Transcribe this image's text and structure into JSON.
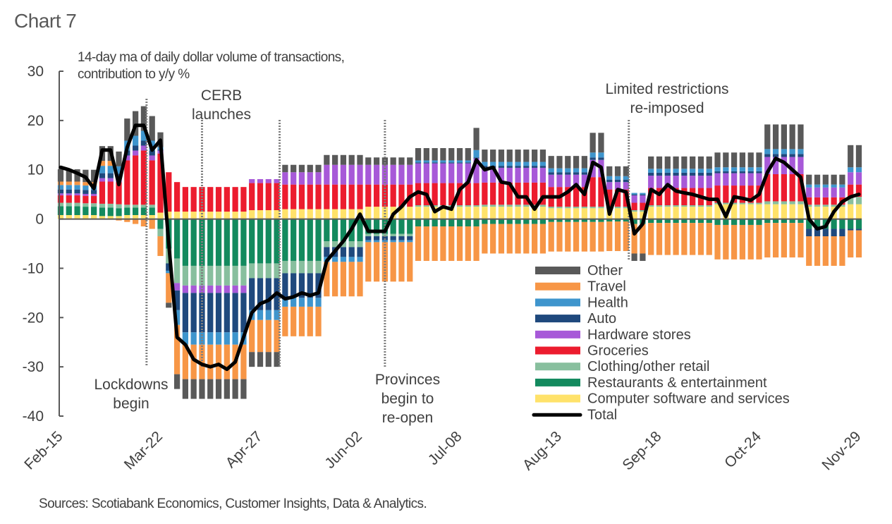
{
  "title": "Chart 7",
  "subtitle_line1": "14-day ma of daily dollar volume of transactions,",
  "subtitle_line2": "contribution to y/y %",
  "source": "Sources: Scotiabank Economics, Customer Insights, Data & Analytics.",
  "chart_data": {
    "type": "bar",
    "subtype": "stacked bar with line overlay",
    "title": "Chart 7",
    "subtitle": "14-day ma of daily dollar volume of transactions, contribution to y/y %",
    "xlabel": "",
    "ylabel": "contribution to y/y %",
    "ylim": [
      -40,
      30
    ],
    "yticks": [
      30,
      20,
      10,
      0,
      -10,
      -20,
      -30,
      -40
    ],
    "xticks": [
      "Feb-15",
      "Mar-22",
      "Apr-27",
      "Jun-02",
      "Jul-08",
      "Aug-13",
      "Sep-18",
      "Oct-24",
      "Nov-29"
    ],
    "xtick_day_offsets": [
      0,
      36,
      72,
      108,
      144,
      180,
      216,
      252,
      288
    ],
    "x_start": "Feb-15",
    "x_step_days": 3,
    "legend_position": "bottom-right",
    "grid": false,
    "annotations": [
      {
        "label_lines": [
          "Lockdowns",
          "begin"
        ],
        "day": 31
      },
      {
        "label_lines": [
          "CERB",
          "launches"
        ],
        "day": 51
      },
      {
        "label_lines": [],
        "day": 79
      },
      {
        "label_lines": [
          "Provinces",
          "begin to",
          "re-open"
        ],
        "day": 117
      },
      {
        "label_lines": [
          "Limited restrictions",
          "re-imposed"
        ],
        "day": 205
      }
    ],
    "series": [
      {
        "name": "Computer software and services",
        "color": "#FFE26A",
        "values": [
          0.8,
          0.8,
          0.8,
          0.8,
          0.8,
          0.6,
          0.6,
          0.6,
          0.8,
          0.8,
          0.8,
          0.8,
          1.3,
          1.5,
          1.5,
          1.5,
          1.5,
          1.5,
          1.5,
          1.5,
          1.5,
          1.5,
          1.5,
          1.8,
          1.8,
          1.8,
          1.8,
          2,
          2,
          2,
          2,
          2,
          2,
          2,
          2,
          2,
          2,
          2.5,
          2.5,
          2.5,
          2.5,
          2.5,
          2.5,
          2.5,
          2.5,
          2.5,
          2.5,
          2.5,
          2.5,
          2.5,
          2.5,
          2.5,
          2.5,
          2.5,
          2.5,
          2.5,
          2.5,
          2.5,
          2.5,
          2.2,
          2.2,
          2.2,
          2.2,
          2.2,
          2.2,
          2.2,
          2.2,
          2.2,
          2.2,
          1.5,
          1.5,
          2.5,
          2.5,
          2.5,
          2.5,
          2.5,
          2.5,
          2.5,
          2.5,
          3,
          3,
          3,
          3,
          3,
          3,
          3,
          3,
          3,
          3,
          3,
          2.5,
          2.5,
          2.5,
          2.5,
          2.5,
          3,
          3
        ]
      },
      {
        "name": "Restaurants & entertainment",
        "color": "#138A5E",
        "values": [
          1.8,
          1.8,
          1.8,
          1.7,
          1.7,
          1.7,
          1.7,
          1.6,
          1.5,
          1.5,
          1.5,
          1.5,
          -2,
          -6,
          -8,
          -9.5,
          -9.5,
          -9.5,
          -9.5,
          -9.5,
          -9.5,
          -9.5,
          -9.5,
          -9,
          -9,
          -9,
          -9,
          -8.5,
          -8.5,
          -8.5,
          -8.5,
          -8.5,
          -4.5,
          -4.5,
          -4.5,
          -4.5,
          -4.5,
          -3,
          -3,
          -3,
          -3,
          -3,
          -3,
          -1.5,
          -1.5,
          -1.5,
          -1.5,
          -1.5,
          -1.5,
          -1.5,
          -1.5,
          -1,
          -1,
          -1,
          -1,
          -1,
          -1,
          -1,
          -1,
          -0.6,
          -0.6,
          -0.6,
          -0.6,
          -0.6,
          -0.6,
          -0.6,
          -0.5,
          -0.5,
          -0.5,
          -1,
          -1,
          -0.8,
          -0.8,
          -0.8,
          -0.8,
          -0.8,
          -0.8,
          -0.8,
          -0.8,
          -1.2,
          -1.2,
          -1.2,
          -1.2,
          -1.2,
          -1.2,
          -0.8,
          -0.8,
          -0.8,
          -0.8,
          -0.8,
          -2,
          -2,
          -2,
          -2,
          -2,
          -2,
          -2
        ]
      },
      {
        "name": "Clothing/other retail",
        "color": "#88BF9E",
        "values": [
          0.7,
          0.7,
          0.7,
          0.7,
          0.7,
          0.8,
          0.8,
          0.8,
          0.6,
          0.6,
          0.6,
          0.6,
          -1.5,
          -3,
          -5,
          -4,
          -4,
          -4,
          -4,
          -4,
          -4,
          -4,
          -4,
          -3,
          -3,
          -3,
          -3,
          -2.5,
          -2.5,
          -2.5,
          -2.5,
          -2.5,
          -1.2,
          -1.2,
          -1.2,
          -1.2,
          -1.2,
          -0.5,
          -0.5,
          -0.5,
          -0.5,
          -0.5,
          -0.5,
          0.3,
          0.3,
          0.3,
          0.3,
          0.3,
          0.3,
          0.3,
          0.3,
          0.4,
          0.4,
          0.4,
          0.4,
          0.4,
          0.4,
          0.4,
          0.4,
          0.3,
          0.3,
          0.3,
          0.3,
          0.3,
          0.3,
          0.3,
          0.3,
          0.3,
          0.3,
          0.3,
          0.3,
          0.3,
          0.3,
          0.3,
          0.3,
          0.3,
          0.3,
          0.3,
          0.3,
          0.3,
          0.3,
          0.3,
          0.3,
          0.3,
          0.3,
          0.6,
          0.6,
          0.6,
          0.6,
          0.6,
          0.4,
          0.4,
          0.4,
          0.4,
          0.4,
          1.5,
          1.5
        ]
      },
      {
        "name": "Groceries",
        "color": "#EC1C2E",
        "values": [
          1.5,
          1.5,
          1.5,
          1.5,
          1.5,
          4.5,
          4.5,
          4.5,
          9,
          10,
          11,
          9,
          12,
          8,
          6,
          5,
          5,
          5,
          5,
          5,
          5,
          5,
          5,
          5.5,
          5.5,
          5.5,
          5.5,
          5,
          5,
          5,
          5,
          5,
          5,
          5,
          5,
          5,
          5,
          4.5,
          4.5,
          4.5,
          4.5,
          4.5,
          4.5,
          4.5,
          4.5,
          4.5,
          4.5,
          4.5,
          4.5,
          4.5,
          4.5,
          4.5,
          4.5,
          4.5,
          4.5,
          4.5,
          4.5,
          4.5,
          4.5,
          4,
          4,
          4,
          4,
          4,
          6,
          6,
          3.5,
          3.5,
          3.5,
          1.5,
          1.5,
          3.5,
          3.5,
          3.5,
          3.5,
          3.5,
          3.5,
          3.5,
          3.5,
          3.5,
          3.5,
          3.5,
          3.5,
          3.5,
          3.5,
          5.5,
          5.5,
          5.5,
          5.5,
          5.5,
          1.5,
          1.5,
          1.5,
          1.5,
          1.5,
          2.5,
          2.5
        ]
      },
      {
        "name": "Hardware stores",
        "color": "#A759D8",
        "values": [
          0.4,
          0.4,
          0.4,
          0.4,
          0.4,
          0.7,
          0.7,
          0.7,
          1,
          1,
          1,
          1,
          0.6,
          0,
          -1.5,
          -1.5,
          -1.5,
          -1.5,
          -1.5,
          -1.5,
          -1.5,
          -1.5,
          -1.5,
          0.8,
          0.8,
          0.8,
          0.8,
          2.5,
          2.5,
          2.5,
          2.5,
          2.5,
          4,
          4,
          4,
          4,
          4,
          4,
          4,
          4,
          4,
          4,
          4,
          4,
          4,
          4,
          4,
          4,
          4,
          4,
          5,
          3,
          3,
          3,
          3,
          3,
          3,
          3,
          3,
          2.5,
          2.5,
          2.5,
          2.5,
          2.5,
          3.5,
          3.5,
          1.5,
          1.5,
          1.5,
          1.5,
          1.5,
          2.5,
          2.5,
          2.5,
          2.5,
          2.5,
          2.5,
          2.5,
          2.5,
          2.5,
          2.5,
          2.5,
          2.5,
          2.5,
          2.5,
          3.5,
          3.5,
          3.5,
          3.5,
          3.5,
          2,
          2,
          2,
          2,
          2,
          2.5,
          2.5
        ]
      },
      {
        "name": "Auto",
        "color": "#1F497D",
        "values": [
          0.8,
          0.8,
          0.8,
          0.8,
          0.8,
          1,
          1,
          1,
          1,
          1,
          1,
          1,
          0.2,
          -1.5,
          -4,
          -8,
          -8,
          -8,
          -8,
          -8,
          -8,
          -8,
          -8,
          -6.5,
          -6.5,
          -6.5,
          -6.5,
          -5,
          -5,
          -5,
          -5,
          -5,
          -2,
          -2,
          -2,
          -2,
          -2,
          -0.8,
          -0.8,
          -0.8,
          -0.8,
          -0.8,
          -0.8,
          0.2,
          0.2,
          0.2,
          0.2,
          0.2,
          0.2,
          0.2,
          0.2,
          0.4,
          0.4,
          0.4,
          0.4,
          0.4,
          0.4,
          0.4,
          0.4,
          0.5,
          0.5,
          0.5,
          0.5,
          0.5,
          0.5,
          0.5,
          0.5,
          0.5,
          0.5,
          0.2,
          0.2,
          0.6,
          0.6,
          0.6,
          0.6,
          0.6,
          0.6,
          0.6,
          0.6,
          0.4,
          0.4,
          0.4,
          0.4,
          0.4,
          0.4,
          0.6,
          0.6,
          0.6,
          0.6,
          0.6,
          -1.5,
          -1.5,
          -1.5,
          -1.5,
          -1.5,
          -0.3,
          -0.3
        ]
      },
      {
        "name": "Health",
        "color": "#3E95CD",
        "values": [
          0.9,
          0.9,
          0.9,
          0.9,
          0.9,
          1.5,
          1.5,
          1.5,
          2,
          2,
          2,
          2,
          0.5,
          -0.5,
          -3,
          -2.5,
          -2.5,
          -2.5,
          -2.5,
          -2.5,
          -2.5,
          -2.5,
          -2.5,
          -2,
          -2,
          -2,
          -2,
          -1.8,
          -1.8,
          -1.8,
          -1.8,
          -1.8,
          -1,
          -1,
          -1,
          -1,
          -1,
          -0.4,
          -0.4,
          -0.4,
          -0.4,
          -0.4,
          -0.4,
          0.4,
          0.4,
          0.4,
          0.4,
          0.4,
          0.4,
          0.4,
          1.5,
          0.8,
          0.8,
          0.8,
          0.8,
          0.8,
          0.8,
          0.8,
          0.8,
          0.8,
          0.8,
          0.8,
          0.8,
          0.8,
          1,
          1,
          0.7,
          0.7,
          0.7,
          0.3,
          0.3,
          0.8,
          0.8,
          0.8,
          0.8,
          0.8,
          0.8,
          0.8,
          0.8,
          0.8,
          0.8,
          0.8,
          0.8,
          0.8,
          0.8,
          1,
          1,
          1,
          1,
          1,
          0.6,
          0.6,
          0.6,
          0.6,
          0.6,
          1,
          1
        ]
      },
      {
        "name": "Travel",
        "color": "#F79646",
        "values": [
          0.7,
          0.7,
          0.7,
          0.7,
          0.7,
          1,
          1,
          -0.3,
          -0.6,
          -1,
          -1.5,
          -2,
          -4,
          -6,
          -10,
          -7,
          -7,
          -7,
          -7,
          -7,
          -7,
          -7,
          -7,
          -6.5,
          -6.5,
          -6.5,
          -6.5,
          -6,
          -6,
          -6,
          -6,
          -6,
          -7,
          -7,
          -7,
          -7,
          -7,
          -8,
          -8,
          -8,
          -8,
          -8,
          -8,
          -7,
          -7,
          -7,
          -7,
          -7,
          -7,
          -7,
          -7,
          -6,
          -6,
          -6,
          -6,
          -6,
          -6,
          -6,
          -6,
          -6,
          -6,
          -6,
          -6,
          -6,
          -6,
          -6,
          -6,
          -6,
          -6,
          -6,
          -6,
          -6.5,
          -6.5,
          -6.5,
          -6.5,
          -6.5,
          -6.5,
          -6.5,
          -6.5,
          -7,
          -7,
          -7,
          -7,
          -7,
          -7,
          -7,
          -7,
          -7,
          -7,
          -7,
          -6,
          -6,
          -6,
          -6,
          -6,
          -5.5,
          -5.5
        ]
      },
      {
        "name": "Other",
        "color": "#595959",
        "values": [
          2.5,
          2.5,
          2.5,
          2.5,
          2.5,
          3,
          3,
          3,
          4.5,
          5,
          5,
          5,
          3,
          -1,
          -3,
          -4,
          -4,
          -4,
          -4,
          -4,
          -4,
          -4,
          -4,
          -3,
          -3,
          -3,
          -3,
          1.5,
          1.5,
          1.5,
          1.5,
          1.5,
          2,
          2,
          2,
          2,
          2,
          1.5,
          1.5,
          1.5,
          1.5,
          1.5,
          1.5,
          2.5,
          2.5,
          2.5,
          2.5,
          2.5,
          2.5,
          2.5,
          4.5,
          2.5,
          2.5,
          2.5,
          2.5,
          2.5,
          2.5,
          2.5,
          2.5,
          2.5,
          2.5,
          2.5,
          2.5,
          2.5,
          4,
          4,
          2,
          2,
          2,
          -1.5,
          -1.5,
          2.5,
          2.5,
          2.5,
          2.5,
          2.5,
          2.5,
          2.5,
          2.5,
          3,
          3,
          3,
          3,
          3,
          3,
          5,
          5,
          5,
          5,
          5,
          2,
          2,
          2,
          2,
          2,
          4.5,
          4.5
        ]
      }
    ],
    "line": {
      "name": "Total",
      "color": "#000000",
      "values": [
        10.5,
        10,
        9.3,
        8.5,
        6.2,
        14,
        14,
        7,
        14.5,
        19,
        19,
        14,
        16,
        -5,
        -24,
        -25.5,
        -28.5,
        -29.5,
        -30,
        -29.5,
        -30.5,
        -29,
        -24,
        -19,
        -17.2,
        -16.5,
        -15,
        -16.2,
        -15.8,
        -15,
        -15.5,
        -15,
        -8.5,
        -6.5,
        -4.5,
        -2,
        1,
        -2.5,
        -2.5,
        -2.5,
        1,
        2.5,
        4.5,
        5.5,
        5,
        1.5,
        2.5,
        2,
        6,
        7.5,
        12,
        10,
        10.5,
        7.5,
        7.2,
        4.5,
        4.5,
        2,
        4.5,
        4.5,
        4.5,
        5.5,
        7,
        5,
        11.5,
        10.5,
        1,
        6,
        5.5,
        -3,
        -1,
        6,
        5,
        7,
        5.7,
        5.3,
        5,
        4.5,
        4,
        4,
        0.5,
        4.5,
        4.2,
        3.8,
        5,
        9.5,
        12.3,
        11.5,
        10,
        8.5,
        0,
        -2,
        -1.5,
        1.5,
        3.5,
        4.5,
        5
      ]
    }
  }
}
